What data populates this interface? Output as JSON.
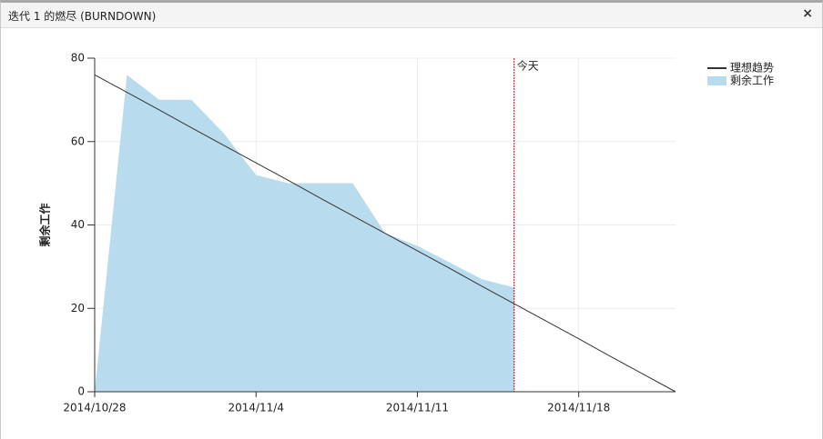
{
  "header": {
    "title": "迭代 1 的燃尽 (BURNDOWN)",
    "close": "×"
  },
  "chart_data": {
    "type": "burndown",
    "y_label": "剩余工作",
    "x": [
      "2014/10/28",
      null,
      null,
      null,
      null,
      "2014/11/4",
      null,
      null,
      null,
      null,
      "2014/11/11",
      null,
      null,
      null,
      null,
      "2014/11/18",
      null,
      null,
      null
    ],
    "series": [
      {
        "name": "理想趋势",
        "kind": "line",
        "color": "#333333",
        "values": [
          76,
          71.8,
          67.6,
          63.3,
          59.1,
          54.9,
          50.7,
          46.4,
          42.2,
          38,
          33.8,
          29.6,
          25.3,
          21.1,
          16.9,
          12.7,
          8.4,
          4.2,
          0
        ]
      },
      {
        "name": "剩余工作",
        "kind": "area",
        "color": "#b8dcee",
        "values": [
          0,
          76,
          70,
          70,
          62,
          52,
          50,
          50,
          50,
          38,
          35,
          31,
          27,
          25,
          null,
          null,
          null,
          null,
          null
        ]
      }
    ],
    "today": {
      "label": "今天",
      "index": 13,
      "color": "#c0001a"
    },
    "ylim": [
      0,
      80
    ],
    "yticks": [
      0,
      20,
      40,
      60,
      80
    ],
    "grid": true,
    "legend": "top-right"
  }
}
